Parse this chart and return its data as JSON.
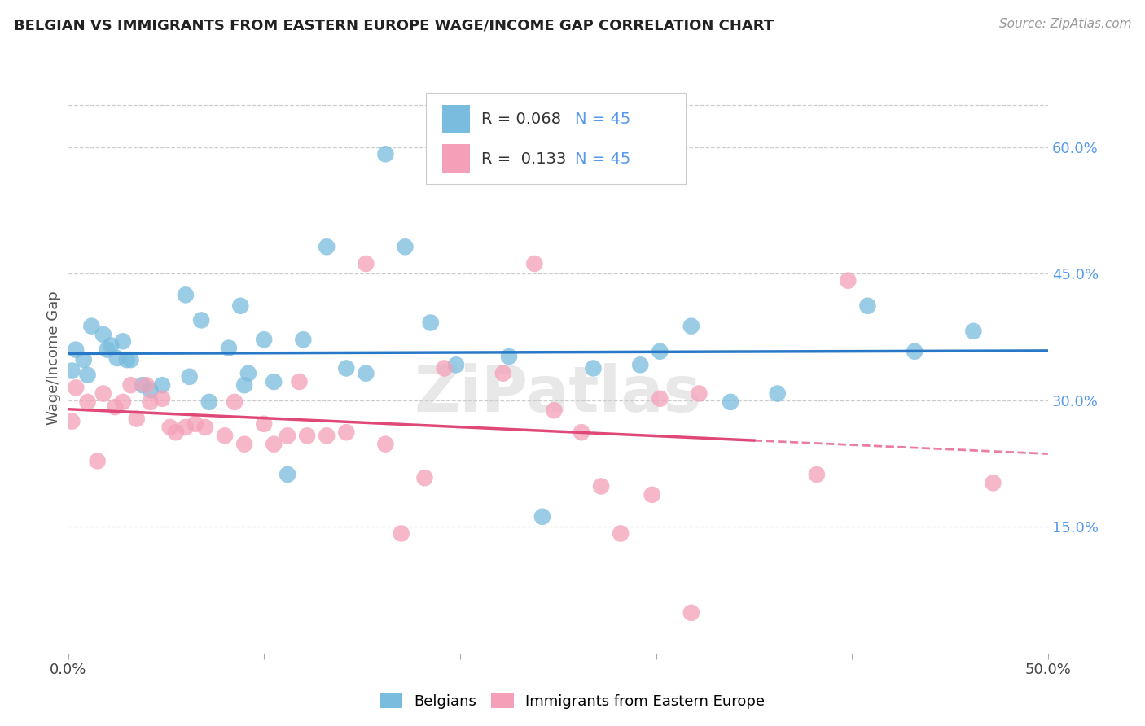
{
  "title": "BELGIAN VS IMMIGRANTS FROM EASTERN EUROPE WAGE/INCOME GAP CORRELATION CHART",
  "source": "Source: ZipAtlas.com",
  "ylabel": "Wage/Income Gap",
  "right_yticks": [
    "60.0%",
    "45.0%",
    "30.0%",
    "15.0%"
  ],
  "right_ytick_vals": [
    0.6,
    0.45,
    0.3,
    0.15
  ],
  "legend_label1": "Belgians",
  "legend_label2": "Immigrants from Eastern Europe",
  "r1": "0.068",
  "n1": "45",
  "r2": "0.133",
  "n2": "45",
  "color_blue": "#7abcde",
  "color_pink": "#f4a0b8",
  "line_blue": "#2878c8",
  "line_pink": "#e04878",
  "background": "#ffffff",
  "xlim": [
    0.0,
    0.5
  ],
  "ylim": [
    0.0,
    0.7
  ],
  "blue_x": [
    0.002,
    0.004,
    0.008,
    0.01,
    0.012,
    0.018,
    0.02,
    0.022,
    0.025,
    0.028,
    0.03,
    0.032,
    0.038,
    0.042,
    0.048,
    0.06,
    0.062,
    0.068,
    0.072,
    0.082,
    0.088,
    0.09,
    0.092,
    0.1,
    0.105,
    0.112,
    0.12,
    0.132,
    0.142,
    0.152,
    0.162,
    0.172,
    0.185,
    0.198,
    0.225,
    0.242,
    0.268,
    0.292,
    0.302,
    0.318,
    0.338,
    0.362,
    0.408,
    0.432,
    0.462
  ],
  "blue_y": [
    0.335,
    0.36,
    0.348,
    0.33,
    0.388,
    0.378,
    0.36,
    0.365,
    0.35,
    0.37,
    0.348,
    0.348,
    0.318,
    0.312,
    0.318,
    0.425,
    0.328,
    0.395,
    0.298,
    0.362,
    0.412,
    0.318,
    0.332,
    0.372,
    0.322,
    0.212,
    0.372,
    0.482,
    0.338,
    0.332,
    0.592,
    0.482,
    0.392,
    0.342,
    0.352,
    0.162,
    0.338,
    0.342,
    0.358,
    0.388,
    0.298,
    0.308,
    0.412,
    0.358,
    0.382
  ],
  "pink_x": [
    0.002,
    0.004,
    0.01,
    0.015,
    0.018,
    0.024,
    0.028,
    0.032,
    0.035,
    0.04,
    0.042,
    0.048,
    0.052,
    0.055,
    0.06,
    0.065,
    0.07,
    0.08,
    0.085,
    0.09,
    0.1,
    0.105,
    0.112,
    0.118,
    0.122,
    0.132,
    0.142,
    0.152,
    0.162,
    0.17,
    0.182,
    0.192,
    0.222,
    0.238,
    0.248,
    0.262,
    0.272,
    0.282,
    0.298,
    0.302,
    0.318,
    0.322,
    0.382,
    0.398,
    0.472
  ],
  "pink_y": [
    0.275,
    0.315,
    0.298,
    0.228,
    0.308,
    0.292,
    0.298,
    0.318,
    0.278,
    0.318,
    0.298,
    0.302,
    0.268,
    0.262,
    0.268,
    0.272,
    0.268,
    0.258,
    0.298,
    0.248,
    0.272,
    0.248,
    0.258,
    0.322,
    0.258,
    0.258,
    0.262,
    0.462,
    0.248,
    0.142,
    0.208,
    0.338,
    0.332,
    0.462,
    0.288,
    0.262,
    0.198,
    0.142,
    0.188,
    0.302,
    0.048,
    0.308,
    0.212,
    0.442,
    0.202
  ]
}
